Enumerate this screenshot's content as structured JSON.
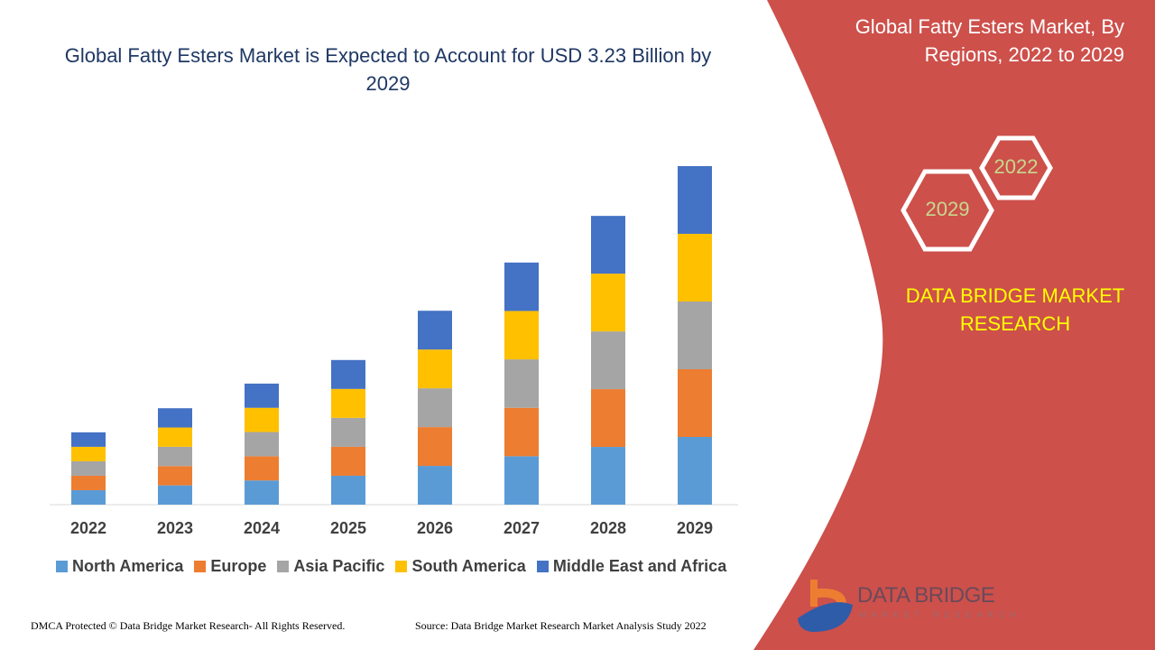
{
  "header": {
    "title": "Global Fatty Esters Market is Expected to Account for USD 3.23 Billion by 2029"
  },
  "side_panel": {
    "title": "Global Fatty Esters Market, By Regions, 2022 to 2029",
    "hex_start": "2022",
    "hex_end": "2029",
    "brand": "DATA BRIDGE MARKET RESEARCH",
    "logo_text": "DATA BRIDGE",
    "logo_sub": "MARKET RESEARCH",
    "panel_color": "#cd504b"
  },
  "footer": {
    "copyright": "DMCA Protected © Data Bridge Market Research- All Rights Reserved.",
    "source": "Source: Data Bridge Market Research Market Analysis Study 2022"
  },
  "chart_data": {
    "type": "bar",
    "stacked": true,
    "title": "Global Fatty Esters Market is Expected to Account for USD 3.23 Billion by 2029",
    "ylabel": "",
    "xlabel": "",
    "unit": "USD Billion (estimated)",
    "grid": false,
    "legend_position": "bottom",
    "categories": [
      "2022",
      "2023",
      "2024",
      "2025",
      "2026",
      "2027",
      "2028",
      "2029"
    ],
    "ylim": [
      0,
      3.23
    ],
    "series": [
      {
        "name": "North America",
        "color": "#5b9bd5",
        "values": [
          0.138,
          0.184,
          0.231,
          0.276,
          0.37,
          0.462,
          0.551,
          0.646
        ]
      },
      {
        "name": "Europe",
        "color": "#ed7d31",
        "values": [
          0.138,
          0.184,
          0.231,
          0.276,
          0.37,
          0.462,
          0.551,
          0.646
        ]
      },
      {
        "name": "Asia Pacific",
        "color": "#a5a5a5",
        "values": [
          0.138,
          0.184,
          0.231,
          0.276,
          0.37,
          0.462,
          0.551,
          0.646
        ]
      },
      {
        "name": "South America",
        "color": "#ffc000",
        "values": [
          0.138,
          0.184,
          0.231,
          0.276,
          0.37,
          0.462,
          0.551,
          0.646
        ]
      },
      {
        "name": "Middle East and Africa",
        "color": "#4472c4",
        "values": [
          0.138,
          0.184,
          0.231,
          0.276,
          0.37,
          0.462,
          0.551,
          0.646
        ]
      }
    ]
  }
}
